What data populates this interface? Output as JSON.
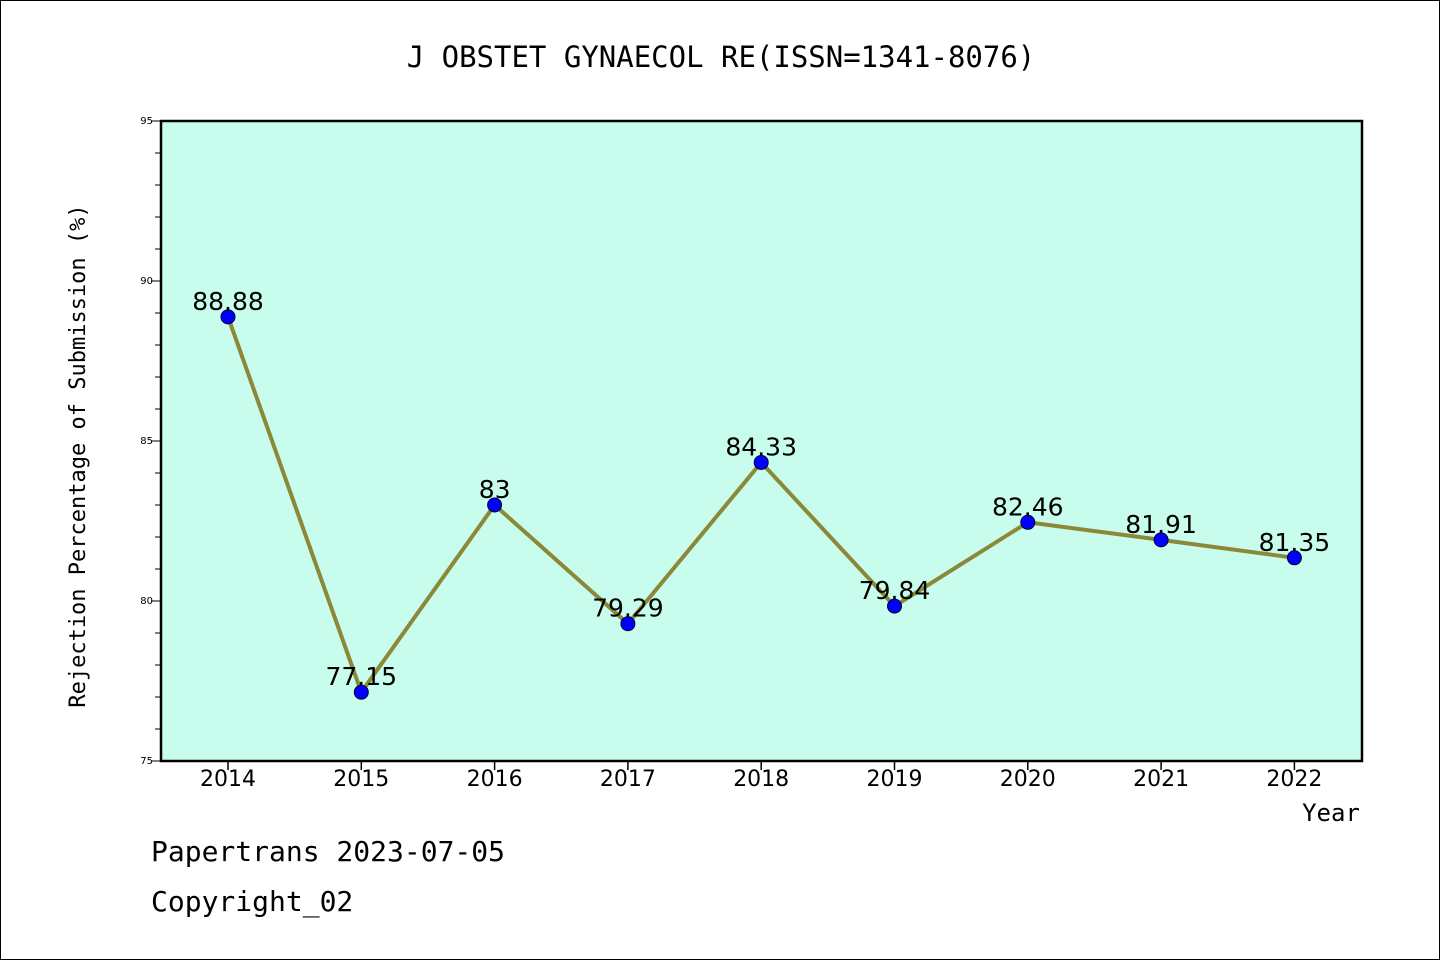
{
  "chart_data": {
    "type": "line",
    "title": "J OBSTET GYNAECOL RE(ISSN=1341-8076)",
    "xlabel": "Year",
    "ylabel": "Rejection Percentage of Submission (%)",
    "categories": [
      "2014",
      "2015",
      "2016",
      "2017",
      "2018",
      "2019",
      "2020",
      "2021",
      "2022"
    ],
    "series": [
      {
        "values": [
          88.88,
          77.15,
          83,
          79.29,
          84.33,
          79.84,
          82.46,
          81.91,
          81.35
        ],
        "labels": [
          "88.88",
          "77.15",
          "83",
          "79.29",
          "84.33",
          "79.84",
          "82.46",
          "81.91",
          "81.35"
        ]
      }
    ],
    "ylim": [
      75,
      95
    ],
    "yticks": [
      "75",
      "80",
      "85",
      "90",
      "95"
    ],
    "grid": false,
    "colors": {
      "plot_background": "#c8fcec",
      "line": "#8b8839",
      "marker": "#0000ff"
    }
  },
  "footer": {
    "line1": "Papertrans 2023-07-05",
    "line2": "Copyright_02"
  }
}
